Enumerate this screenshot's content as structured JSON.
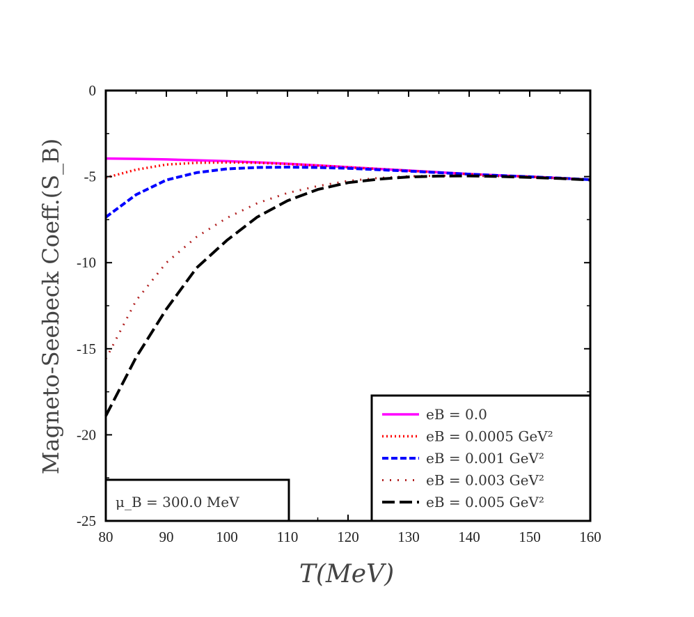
{
  "chart_data": {
    "type": "line",
    "xlabel": "T(MeV)",
    "ylabel": "Magneto-Seebeck Coeff.(S_B)",
    "xlim": [
      80,
      160
    ],
    "ylim": [
      -25,
      0
    ],
    "xticks": [
      "80",
      "90",
      "100",
      "110",
      "120",
      "130",
      "140",
      "150",
      "160"
    ],
    "yticks": [
      "0",
      "-5",
      "-10",
      "-15",
      "-20",
      "-25"
    ],
    "grid": false,
    "legend_position": "bottom-right",
    "annotation": "μ_B = 300.0 MeV",
    "x": [
      80,
      85,
      90,
      95,
      100,
      105,
      110,
      115,
      120,
      125,
      130,
      135,
      140,
      145,
      150,
      155,
      160
    ],
    "series": [
      {
        "name": "eB = 0.0",
        "color": "#ff00ff",
        "style": "solid",
        "values": [
          -3.95,
          -3.97,
          -4.0,
          -4.05,
          -4.1,
          -4.17,
          -4.25,
          -4.35,
          -4.45,
          -4.55,
          -4.65,
          -4.75,
          -4.85,
          -4.93,
          -5.0,
          -5.09,
          -5.18
        ]
      },
      {
        "name": "eB = 0.0005 GeV²",
        "color": "#ff0000",
        "style": "dotted",
        "values": [
          -5.06,
          -4.6,
          -4.3,
          -4.2,
          -4.18,
          -4.2,
          -4.27,
          -4.36,
          -4.46,
          -4.56,
          -4.66,
          -4.76,
          -4.86,
          -4.94,
          -5.01,
          -5.09,
          -5.18
        ]
      },
      {
        "name": "eB = 0.001 GeV²",
        "color": "#0000ff",
        "style": "dashed",
        "values": [
          -7.36,
          -6.05,
          -5.2,
          -4.77,
          -4.55,
          -4.47,
          -4.45,
          -4.47,
          -4.52,
          -4.6,
          -4.68,
          -4.77,
          -4.86,
          -4.94,
          -5.01,
          -5.09,
          -5.18
        ]
      },
      {
        "name": "eB = 0.003 GeV²",
        "color": "#b22222",
        "style": "sparse-dotted",
        "values": [
          -15.6,
          -12.2,
          -10.0,
          -8.5,
          -7.4,
          -6.55,
          -5.95,
          -5.55,
          -5.25,
          -5.08,
          -4.98,
          -4.95,
          -4.95,
          -4.98,
          -5.04,
          -5.1,
          -5.18
        ]
      },
      {
        "name": "eB = 0.005 GeV²",
        "color": "#000000",
        "style": "long-dashed",
        "values": [
          -18.9,
          -15.5,
          -12.7,
          -10.3,
          -8.7,
          -7.35,
          -6.4,
          -5.75,
          -5.35,
          -5.15,
          -5.02,
          -4.97,
          -4.96,
          -4.99,
          -5.05,
          -5.11,
          -5.2
        ]
      }
    ]
  }
}
